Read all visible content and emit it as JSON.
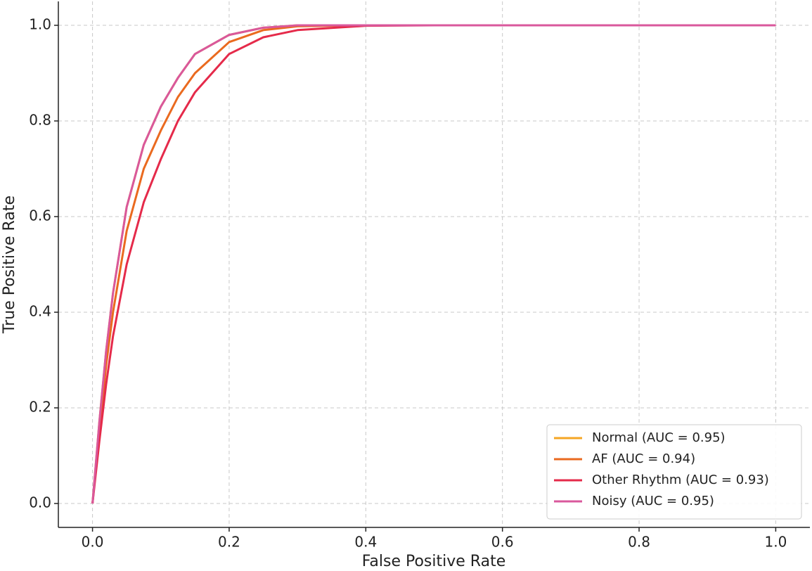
{
  "chart_data": {
    "type": "line",
    "xlabel": "False Positive Rate",
    "ylabel": "True Positive Rate",
    "x": [
      0,
      0.01,
      0.02,
      0.03,
      0.05,
      0.075,
      0.1,
      0.125,
      0.15,
      0.2,
      0.25,
      0.3,
      0.4,
      0.5,
      0.6,
      0.7,
      0.8,
      0.9,
      1.0
    ],
    "series": [
      {
        "name": "Normal (AUC = 0.95)",
        "color": "#f5a623",
        "values": [
          0,
          0.17,
          0.32,
          0.44,
          0.62,
          0.75,
          0.83,
          0.89,
          0.94,
          0.98,
          0.995,
          1.0,
          1.0,
          1.0,
          1.0,
          1.0,
          1.0,
          1.0,
          1.0
        ]
      },
      {
        "name": "AF (AUC = 0.94)",
        "color": "#ea6a1f",
        "values": [
          0,
          0.15,
          0.29,
          0.4,
          0.57,
          0.7,
          0.78,
          0.85,
          0.9,
          0.965,
          0.99,
          0.998,
          1.0,
          1.0,
          1.0,
          1.0,
          1.0,
          1.0,
          1.0
        ]
      },
      {
        "name": "Other Rhythm (AUC = 0.93)",
        "color": "#e52a4a",
        "values": [
          0,
          0.13,
          0.25,
          0.35,
          0.5,
          0.63,
          0.72,
          0.8,
          0.86,
          0.94,
          0.975,
          0.99,
          0.999,
          1.0,
          1.0,
          1.0,
          1.0,
          1.0,
          1.0
        ]
      },
      {
        "name": "Noisy (AUC = 0.95)",
        "color": "#d9589c",
        "values": [
          0,
          0.17,
          0.32,
          0.44,
          0.62,
          0.75,
          0.83,
          0.89,
          0.94,
          0.98,
          0.995,
          1.0,
          1.0,
          1.0,
          1.0,
          1.0,
          1.0,
          1.0,
          1.0
        ]
      }
    ],
    "xlim": [
      -0.05,
      1.05
    ],
    "ylim": [
      -0.05,
      1.05
    ],
    "xticks": [
      {
        "value": 0,
        "label": "0.0"
      },
      0.2,
      0.4,
      0.6,
      0.8,
      {
        "value": 1,
        "label": "1.0"
      }
    ],
    "yticks": [
      {
        "value": 0,
        "label": "0.0"
      },
      0.2,
      0.4,
      0.6,
      0.8,
      {
        "value": 1,
        "label": "1.0"
      }
    ],
    "grid": true,
    "legend": "lower right"
  }
}
